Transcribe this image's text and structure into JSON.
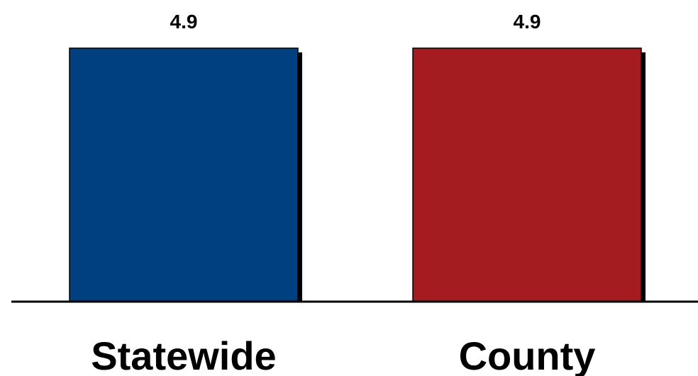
{
  "chart_data": {
    "type": "bar",
    "categories": [
      "Statewide",
      "County"
    ],
    "values": [
      4.9,
      4.9
    ],
    "data_labels": [
      "4.9",
      "4.9"
    ],
    "colors": [
      "#004080",
      "#a51c20"
    ],
    "shadow_color": "#000000",
    "axis_color": "#000000",
    "title": "",
    "xlabel": "",
    "ylabel": "",
    "ylim": [
      0,
      5
    ],
    "grid": false,
    "legend": "none"
  }
}
